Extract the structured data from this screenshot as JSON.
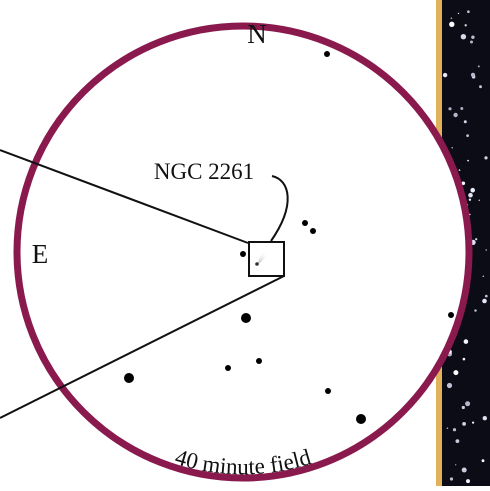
{
  "labels": {
    "north": "N",
    "east": "E",
    "object": "NGC 2261",
    "field": "40 minute field"
  },
  "colors": {
    "ring": "#8a1a4e",
    "photo_edge": "#e2b25a",
    "photo_bg": "#0b0c16",
    "ink": "#111111"
  }
}
